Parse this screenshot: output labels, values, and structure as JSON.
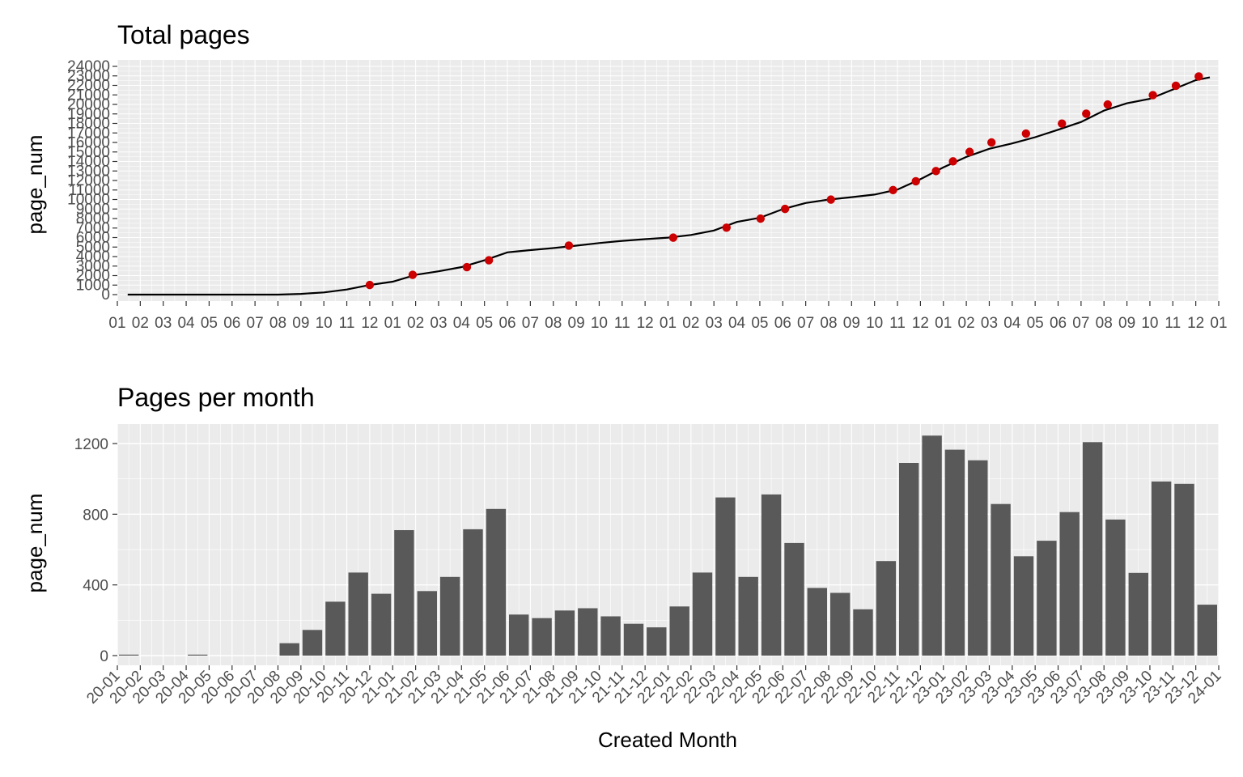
{
  "chart_data": [
    {
      "type": "line",
      "title": "Total pages",
      "xlabel": "",
      "ylabel": "page_num",
      "ylim": [
        0,
        24000
      ],
      "grid": true,
      "y_ticks": [
        0,
        1000,
        2000,
        3000,
        4000,
        5000,
        6000,
        7000,
        8000,
        9000,
        10000,
        11000,
        12000,
        13000,
        14000,
        15000,
        16000,
        17000,
        18000,
        19000,
        20000,
        21000,
        22000,
        23000,
        24000
      ],
      "x_ticks": [
        "01",
        "02",
        "03",
        "04",
        "05",
        "06",
        "07",
        "08",
        "09",
        "10",
        "11",
        "12",
        "01",
        "02",
        "03",
        "04",
        "05",
        "06",
        "07",
        "08",
        "09",
        "10",
        "11",
        "12",
        "01",
        "02",
        "03",
        "04",
        "05",
        "06",
        "07",
        "08",
        "09",
        "10",
        "11",
        "12",
        "01",
        "02",
        "03",
        "04",
        "05",
        "06",
        "07",
        "08",
        "09",
        "10",
        "11",
        "12",
        "01"
      ],
      "x_range": [
        "2020-01-01",
        "2024-01-01"
      ],
      "line": {
        "x": [
          "2020-01-15",
          "2020-08-01",
          "2020-09-01",
          "2020-10-01",
          "2020-11-01",
          "2020-12-01",
          "2021-01-01",
          "2021-02-01",
          "2021-03-01",
          "2021-04-01",
          "2021-05-01",
          "2021-06-01",
          "2021-07-01",
          "2021-08-01",
          "2021-09-01",
          "2021-10-01",
          "2021-11-01",
          "2021-12-01",
          "2022-01-01",
          "2022-02-01",
          "2022-03-01",
          "2022-04-01",
          "2022-05-01",
          "2022-06-01",
          "2022-07-01",
          "2022-08-01",
          "2022-09-01",
          "2022-10-01",
          "2022-11-01",
          "2022-12-01",
          "2023-01-01",
          "2023-02-01",
          "2023-03-01",
          "2023-04-01",
          "2023-05-01",
          "2023-06-01",
          "2023-07-01",
          "2023-08-01",
          "2023-09-01",
          "2023-10-01",
          "2023-11-01",
          "2023-12-01",
          "2023-12-20"
        ],
        "y": [
          0,
          0,
          80,
          230,
          540,
          1010,
          1360,
          2080,
          2450,
          2890,
          3610,
          4440,
          4680,
          4890,
          5150,
          5420,
          5650,
          5830,
          5990,
          6270,
          6740,
          7640,
          8080,
          8990,
          9630,
          9990,
          10250,
          10520,
          11050,
          12140,
          13380,
          14480,
          15340,
          15900,
          16550,
          17340,
          18150,
          19350,
          20120,
          20590,
          21570,
          22550,
          22840
        ]
      },
      "points": {
        "x": [
          "2020-12-01",
          "2021-01-28",
          "2021-04-08",
          "2021-05-07",
          "2021-08-22",
          "2022-01-08",
          "2022-03-18",
          "2022-05-02",
          "2022-06-04",
          "2022-08-04",
          "2022-10-26",
          "2022-11-25",
          "2022-12-22",
          "2023-01-14",
          "2023-02-05",
          "2023-03-04",
          "2023-04-19",
          "2023-06-06",
          "2023-07-08",
          "2023-08-06",
          "2023-10-05",
          "2023-11-05",
          "2023-12-05"
        ],
        "y": [
          1010,
          2080,
          2890,
          3610,
          5150,
          5990,
          7040,
          7990,
          9010,
          9990,
          10990,
          11920,
          12990,
          14010,
          15010,
          16000,
          16930,
          17980,
          19030,
          19990,
          20970,
          21960,
          22940
        ]
      }
    },
    {
      "type": "bar",
      "title": "Pages per month",
      "xlabel": "Created Month",
      "ylabel": "page_num",
      "ylim": [
        0,
        1300
      ],
      "grid": true,
      "y_ticks": [
        0,
        400,
        800,
        1200
      ],
      "x_ticks": [
        "20-01",
        "20-02",
        "20-03",
        "20-04",
        "20-05",
        "20-06",
        "20-07",
        "20-08",
        "20-09",
        "20-10",
        "20-11",
        "20-12",
        "21-01",
        "21-02",
        "21-03",
        "21-04",
        "21-05",
        "21-06",
        "21-07",
        "21-08",
        "21-09",
        "21-10",
        "21-11",
        "21-12",
        "22-01",
        "22-02",
        "22-03",
        "22-04",
        "22-05",
        "22-06",
        "22-07",
        "22-08",
        "22-09",
        "22-10",
        "22-11",
        "22-12",
        "23-01",
        "23-02",
        "23-03",
        "23-04",
        "23-05",
        "23-06",
        "23-07",
        "23-08",
        "23-09",
        "23-10",
        "23-11",
        "23-12",
        "24-01"
      ],
      "categories": [
        "20-01",
        "20-02",
        "20-03",
        "20-04",
        "20-05",
        "20-06",
        "20-07",
        "20-08",
        "20-09",
        "20-10",
        "20-11",
        "20-12",
        "21-01",
        "21-02",
        "21-03",
        "21-04",
        "21-05",
        "21-06",
        "21-07",
        "21-08",
        "21-09",
        "21-10",
        "21-11",
        "21-12",
        "22-01",
        "22-02",
        "22-03",
        "22-04",
        "22-05",
        "22-06",
        "22-07",
        "22-08",
        "22-09",
        "22-10",
        "22-11",
        "22-12",
        "23-01",
        "23-02",
        "23-03",
        "23-04",
        "23-05",
        "23-06",
        "23-07",
        "23-08",
        "23-09",
        "23-10",
        "23-11",
        "23-12"
      ],
      "values": [
        3,
        0,
        0,
        3,
        0,
        0,
        0,
        70,
        145,
        305,
        470,
        350,
        710,
        365,
        445,
        715,
        830,
        232,
        212,
        255,
        268,
        222,
        180,
        160,
        278,
        470,
        895,
        445,
        912,
        637,
        383,
        355,
        262,
        535,
        1090,
        1245,
        1165,
        1105,
        858,
        562,
        650,
        812,
        1208,
        770,
        468,
        985,
        972,
        288
      ]
    }
  ],
  "colors": {
    "panel": "#ebebeb",
    "grid": "#ffffff",
    "line": "#000000",
    "point": "#cc0000",
    "bar": "#595959",
    "tick_text": "#4d4d4d"
  }
}
